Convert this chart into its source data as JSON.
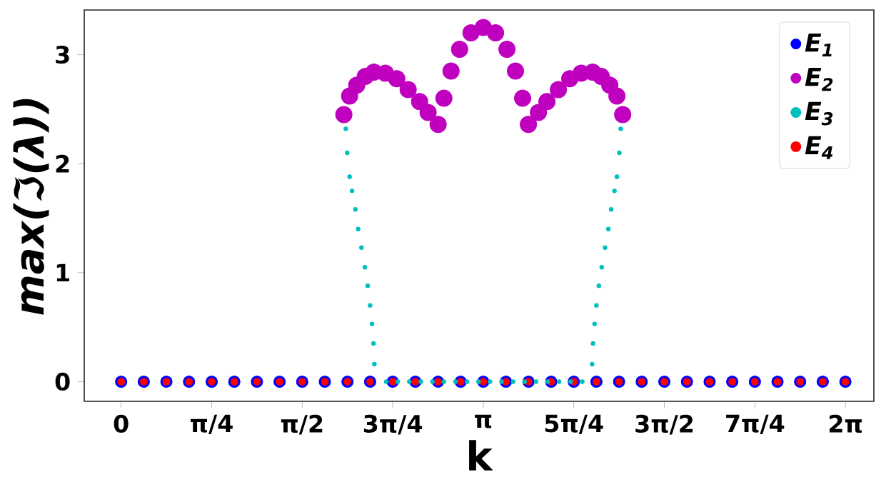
{
  "chart_data": {
    "type": "scatter",
    "xlabel": "k",
    "ylabel": "max(ℑ(λ))",
    "xlim": [
      -0.32,
      6.53
    ],
    "ylim": [
      -0.18,
      3.41
    ],
    "xticks": [
      0,
      {
        "value": 0.7854,
        "label": "π/4"
      },
      {
        "value": 1.5708,
        "label": "π/2"
      },
      {
        "value": 2.3562,
        "label": "3π/4"
      },
      {
        "value": 3.1416,
        "label": "π"
      },
      {
        "value": 3.927,
        "label": "5π/4"
      },
      {
        "value": 4.7124,
        "label": "3π/2"
      },
      {
        "value": 5.4978,
        "label": "7π/4"
      },
      {
        "value": 6.2832,
        "label": "2π"
      }
    ],
    "yticks": [
      0,
      1,
      2,
      3
    ],
    "legend": "top right",
    "grid": false,
    "series": [
      {
        "name": "E$_{1}$",
        "color": "#0000ff",
        "x": [
          0,
          0.1963,
          0.3927,
          0.589,
          0.7854,
          0.9817,
          1.1781,
          1.3744,
          1.5708,
          1.7671,
          1.9635,
          2.1598,
          2.3562,
          2.5525,
          2.7489,
          2.9452,
          3.1416,
          3.3379,
          3.5343,
          3.7306,
          3.927,
          4.1233,
          4.3197,
          4.516,
          4.7124,
          4.9087,
          5.1051,
          5.3014,
          5.4978,
          5.6941,
          5.8905,
          6.0868,
          6.2832
        ],
        "values": [
          0,
          0,
          0,
          0,
          0,
          0,
          0,
          0,
          0,
          0,
          0,
          0,
          0,
          0,
          0,
          0,
          0,
          0,
          0,
          0,
          0,
          0,
          0,
          0,
          0,
          0,
          0,
          0,
          0,
          0,
          0,
          0,
          0
        ]
      },
      {
        "name": "E$_{2}$",
        "color": "#bf00bf",
        "x": [
          1.932,
          1.982,
          2.044,
          2.118,
          2.193,
          2.292,
          2.391,
          2.49,
          2.589,
          2.663,
          2.75,
          2.8,
          2.862,
          2.936,
          3.035,
          3.142,
          3.248,
          3.347,
          3.421,
          3.483,
          3.533,
          3.62,
          3.694,
          3.793,
          3.892,
          3.991,
          4.09,
          4.165,
          4.239,
          4.301,
          4.351
        ],
        "values": [
          2.45,
          2.62,
          2.72,
          2.8,
          2.84,
          2.83,
          2.78,
          2.68,
          2.57,
          2.47,
          2.36,
          2.6,
          2.85,
          3.05,
          3.2,
          3.25,
          3.2,
          3.05,
          2.85,
          2.6,
          2.36,
          2.47,
          2.57,
          2.68,
          2.78,
          2.83,
          2.84,
          2.8,
          2.72,
          2.62,
          2.45
        ]
      },
      {
        "name": "E$_{3}$",
        "color": "#00bfbf",
        "x": [
          1.949,
          1.961,
          1.982,
          2.003,
          2.032,
          2.056,
          2.085,
          2.114,
          2.139,
          2.16,
          2.176,
          2.189,
          2.197,
          2.3,
          2.4,
          2.5,
          2.6,
          2.7,
          2.8,
          2.9,
          3.0,
          3.1,
          3.2,
          3.3,
          3.4,
          3.5,
          3.6,
          3.7,
          3.8,
          3.9,
          4.0,
          4.086,
          4.094,
          4.107,
          4.123,
          4.144,
          4.169,
          4.198,
          4.227,
          4.251,
          4.28,
          4.301,
          4.322,
          4.334
        ],
        "values": [
          2.32,
          2.1,
          1.88,
          1.75,
          1.58,
          1.4,
          1.23,
          1.05,
          0.88,
          0.7,
          0.53,
          0.35,
          0.16,
          0,
          0,
          0,
          0,
          0,
          0,
          0,
          0,
          0,
          0,
          0,
          0,
          0,
          0,
          0,
          0,
          0,
          0,
          0.16,
          0.35,
          0.53,
          0.7,
          0.88,
          1.05,
          1.23,
          1.4,
          1.58,
          1.75,
          1.88,
          2.1,
          2.32
        ]
      },
      {
        "name": "E$_{4}$",
        "color": "#ff0000",
        "x": [
          0,
          0.1963,
          0.3927,
          0.589,
          0.7854,
          0.9817,
          1.1781,
          1.3744,
          1.5708,
          1.7671,
          1.9635,
          2.1598,
          2.3562,
          2.5525,
          2.7489,
          2.9452,
          3.1416,
          3.3379,
          3.5343,
          3.7306,
          3.927,
          4.1233,
          4.3197,
          4.516,
          4.7124,
          4.9087,
          5.1051,
          5.3014,
          5.4978,
          5.6941,
          5.8905,
          6.0868,
          6.2832
        ],
        "values": [
          0,
          0,
          0,
          0,
          0,
          0,
          0,
          0,
          0,
          0,
          0,
          0,
          0,
          0,
          0,
          0,
          0,
          0,
          0,
          0,
          0,
          0,
          0,
          0,
          0,
          0,
          0,
          0,
          0,
          0,
          0,
          0,
          0
        ]
      }
    ]
  }
}
